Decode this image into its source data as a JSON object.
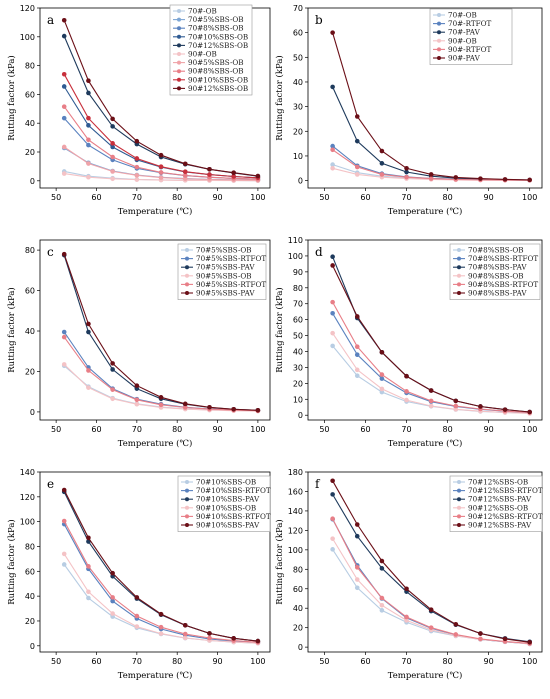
{
  "chart_data": [
    {
      "type": "line",
      "panel_label": "a",
      "xlabel": "Temperature (℃)",
      "ylabel": "Rutting factor (kPa)",
      "xlim": [
        46,
        103
      ],
      "ylim": [
        -5,
        120
      ],
      "xticks": [
        50,
        60,
        70,
        80,
        90,
        100
      ],
      "yticks": [
        0,
        20,
        40,
        60,
        80,
        100,
        120
      ],
      "legend_position": "top-right",
      "x": [
        52,
        58,
        64,
        70,
        76,
        82,
        88,
        94,
        100
      ],
      "series": [
        {
          "name": "70#-OB",
          "color": "#b8cde3",
          "values": [
            6.5,
            3.2,
            1.8,
            1.0,
            0.6,
            0.4,
            0.3,
            0.2,
            0.1
          ]
        },
        {
          "name": "70#5%SBS-OB",
          "color": "#7da6d4",
          "values": [
            22.8,
            12.5,
            6.8,
            4.0,
            2.4,
            1.5,
            1.0,
            0.7,
            0.5
          ]
        },
        {
          "name": "70#8%SBS-OB",
          "color": "#5a82bf",
          "values": [
            43.5,
            24.8,
            14.5,
            8.6,
            5.6,
            3.6,
            2.4,
            1.7,
            1.2
          ]
        },
        {
          "name": "70#10%SBS-OB",
          "color": "#2e5a92",
          "values": [
            65.5,
            38.5,
            23.5,
            14.5,
            9.5,
            6.2,
            4.3,
            3.0,
            2.1
          ]
        },
        {
          "name": "70#12%SBS-OB",
          "color": "#1e3a5c",
          "values": [
            100.5,
            61.0,
            37.8,
            25.5,
            16.5,
            11.5,
            8.0,
            5.5,
            3.2
          ]
        },
        {
          "name": "90#-OB",
          "color": "#f4c3c6",
          "values": [
            5.0,
            2.5,
            1.4,
            0.8,
            0.5,
            0.3,
            0.2,
            0.15,
            0.1
          ]
        },
        {
          "name": "90#5%SBS-OB",
          "color": "#f0a3a8",
          "values": [
            23.5,
            12.0,
            6.5,
            3.8,
            2.2,
            1.4,
            0.9,
            0.6,
            0.4
          ]
        },
        {
          "name": "90#8%SBS-OB",
          "color": "#e87e87",
          "values": [
            51.5,
            28.5,
            16.5,
            9.5,
            5.8,
            3.7,
            2.5,
            1.7,
            1.1
          ]
        },
        {
          "name": "90#10%SBS-OB",
          "color": "#c8303c",
          "values": [
            74.0,
            43.5,
            26.0,
            15.5,
            9.8,
            6.3,
            4.3,
            3.0,
            2.1
          ]
        },
        {
          "name": "90#12%SBS-OB",
          "color": "#6b0f17",
          "values": [
            111.5,
            69.5,
            43.0,
            27.5,
            17.8,
            11.8,
            8.0,
            5.6,
            3.3
          ]
        }
      ]
    },
    {
      "type": "line",
      "panel_label": "b",
      "xlabel": "Temperature (℃)",
      "ylabel": "Rutting factor (kPa)",
      "xlim": [
        46,
        103
      ],
      "ylim": [
        -3,
        70
      ],
      "xticks": [
        50,
        60,
        70,
        80,
        90,
        100
      ],
      "yticks": [
        0,
        10,
        20,
        30,
        40,
        50,
        60,
        70
      ],
      "legend_position": "top-right",
      "x": [
        52,
        58,
        64,
        70,
        76,
        82,
        88,
        94,
        100
      ],
      "series": [
        {
          "name": "70#-OB",
          "color": "#b8cde3",
          "values": [
            6.5,
            3.2,
            1.8,
            1.0,
            0.6,
            0.4,
            0.3,
            0.2,
            0.1
          ]
        },
        {
          "name": "70#-RTFOT",
          "color": "#5a82bf",
          "values": [
            14.0,
            6.0,
            2.8,
            1.5,
            0.9,
            0.6,
            0.4,
            0.3,
            0.2
          ]
        },
        {
          "name": "70#-PAV",
          "color": "#1e3a5c",
          "values": [
            38.0,
            16.0,
            7.0,
            3.5,
            1.8,
            1.0,
            0.6,
            0.4,
            0.2
          ]
        },
        {
          "name": "90#-OB",
          "color": "#f4c3c6",
          "values": [
            5.0,
            2.5,
            1.4,
            0.8,
            0.5,
            0.3,
            0.2,
            0.15,
            0.1
          ]
        },
        {
          "name": "90#-RTFOT",
          "color": "#e87e87",
          "values": [
            12.5,
            5.5,
            2.5,
            1.4,
            0.8,
            0.5,
            0.3,
            0.2,
            0.15
          ]
        },
        {
          "name": "90#-PAV",
          "color": "#6b0f17",
          "values": [
            60.0,
            26.0,
            12.0,
            5.0,
            2.5,
            1.3,
            0.8,
            0.5,
            0.3
          ]
        }
      ]
    },
    {
      "type": "line",
      "panel_label": "c",
      "xlabel": "Temperature (℃)",
      "ylabel": "Rutting factor (kPa)",
      "xlim": [
        46,
        103
      ],
      "ylim": [
        -4,
        85
      ],
      "xticks": [
        50,
        60,
        70,
        80,
        90,
        100
      ],
      "yticks": [
        0,
        20,
        40,
        60,
        80
      ],
      "legend_position": "top-right",
      "x": [
        52,
        58,
        64,
        70,
        76,
        82,
        88,
        94,
        100
      ],
      "series": [
        {
          "name": "70#5%SBS-OB",
          "color": "#b8cde3",
          "values": [
            22.8,
            12.5,
            6.8,
            4.0,
            2.4,
            1.5,
            1.0,
            0.7,
            0.5
          ]
        },
        {
          "name": "70#5%SBS-RTFOT",
          "color": "#5a82bf",
          "values": [
            39.5,
            22.0,
            11.5,
            6.3,
            3.8,
            2.3,
            1.5,
            1.0,
            0.6
          ]
        },
        {
          "name": "70#5%SBS-PAV",
          "color": "#1e3a5c",
          "values": [
            77.5,
            39.5,
            21.0,
            11.5,
            6.5,
            3.8,
            2.2,
            1.3,
            0.8
          ]
        },
        {
          "name": "90#5%SBS-OB",
          "color": "#f4c3c6",
          "values": [
            23.5,
            12.0,
            6.5,
            3.8,
            2.2,
            1.4,
            0.9,
            0.6,
            0.4
          ]
        },
        {
          "name": "90#5%SBS-RTFOT",
          "color": "#e87e87",
          "values": [
            37.0,
            20.5,
            11.0,
            6.0,
            3.5,
            2.2,
            1.4,
            0.9,
            0.6
          ]
        },
        {
          "name": "90#5%SBS-PAV",
          "color": "#6b0f17",
          "values": [
            78.0,
            43.5,
            24.0,
            13.0,
            7.2,
            4.0,
            2.3,
            1.3,
            0.8
          ]
        }
      ]
    },
    {
      "type": "line",
      "panel_label": "d",
      "xlabel": "Temperature (℃)",
      "ylabel": "Rutting factor (kPa)",
      "xlim": [
        46,
        103
      ],
      "ylim": [
        -3,
        110
      ],
      "xticks": [
        50,
        60,
        70,
        80,
        90,
        100
      ],
      "yticks": [
        0,
        10,
        20,
        30,
        40,
        50,
        60,
        70,
        80,
        90,
        100,
        110
      ],
      "legend_position": "top-right",
      "x": [
        52,
        58,
        64,
        70,
        76,
        82,
        88,
        94,
        100
      ],
      "series": [
        {
          "name": "70#8%SBS-OB",
          "color": "#b8cde3",
          "values": [
            43.5,
            24.8,
            14.5,
            8.6,
            5.6,
            3.6,
            2.4,
            1.7,
            1.2
          ]
        },
        {
          "name": "70#8%SBS-RTFOT",
          "color": "#5a82bf",
          "values": [
            64.0,
            38.0,
            23.0,
            14.0,
            8.5,
            5.5,
            3.7,
            2.5,
            1.6
          ]
        },
        {
          "name": "70#8%SBS-PAV",
          "color": "#1e3a5c",
          "values": [
            99.5,
            61.0,
            39.5,
            24.5,
            15.5,
            9.0,
            5.5,
            3.5,
            2.0
          ]
        },
        {
          "name": "90#8%SBS-OB",
          "color": "#f4c3c6",
          "values": [
            51.5,
            28.5,
            16.5,
            9.5,
            5.8,
            3.7,
            2.5,
            1.7,
            1.1
          ]
        },
        {
          "name": "90#8%SBS-RTFOT",
          "color": "#e87e87",
          "values": [
            71.0,
            43.0,
            25.5,
            15.0,
            9.0,
            5.8,
            3.9,
            2.6,
            1.7
          ]
        },
        {
          "name": "90#8%SBS-PAV",
          "color": "#6b0f17",
          "values": [
            94.0,
            62.0,
            39.5,
            24.5,
            15.5,
            9.0,
            5.5,
            3.5,
            2.0
          ]
        }
      ]
    },
    {
      "type": "line",
      "panel_label": "e",
      "xlabel": "Temperature (℃)",
      "ylabel": "Rutting factor (kPa)",
      "xlim": [
        46,
        103
      ],
      "ylim": [
        -5,
        140
      ],
      "xticks": [
        50,
        60,
        70,
        80,
        90,
        100
      ],
      "yticks": [
        0,
        20,
        40,
        60,
        80,
        100,
        120,
        140
      ],
      "legend_position": "top-right",
      "x": [
        52,
        58,
        64,
        70,
        76,
        82,
        88,
        94,
        100
      ],
      "series": [
        {
          "name": "70#10%SBS-OB",
          "color": "#b8cde3",
          "values": [
            65.5,
            38.5,
            23.5,
            14.5,
            9.5,
            6.2,
            4.3,
            3.0,
            2.1
          ]
        },
        {
          "name": "70#10%SBS-RTFOT",
          "color": "#5a82bf",
          "values": [
            98.0,
            62.0,
            36.0,
            22.0,
            13.5,
            8.5,
            5.5,
            3.8,
            2.6
          ]
        },
        {
          "name": "70#10%SBS-PAV",
          "color": "#1e3a5c",
          "values": [
            124.0,
            84.0,
            56.0,
            38.0,
            25.0,
            16.5,
            10.0,
            6.0,
            3.8
          ]
        },
        {
          "name": "90#10%SBS-OB",
          "color": "#f4c3c6",
          "values": [
            74.0,
            43.5,
            26.0,
            15.5,
            9.8,
            6.3,
            4.3,
            3.0,
            2.1
          ]
        },
        {
          "name": "90#10%SBS-RTFOT",
          "color": "#e87e87",
          "values": [
            100.5,
            64.0,
            39.0,
            24.0,
            15.0,
            9.5,
            6.3,
            4.2,
            2.8
          ]
        },
        {
          "name": "90#10%SBS-PAV",
          "color": "#6b0f17",
          "values": [
            125.5,
            87.0,
            58.5,
            39.0,
            25.5,
            16.5,
            10.0,
            6.0,
            3.8
          ]
        }
      ]
    },
    {
      "type": "line",
      "panel_label": "f",
      "xlabel": "Temperature (℃)",
      "ylabel": "Rutting factor (kPa)",
      "xlim": [
        46,
        103
      ],
      "ylim": [
        -5,
        180
      ],
      "xticks": [
        50,
        60,
        70,
        80,
        90,
        100
      ],
      "yticks": [
        0,
        20,
        40,
        60,
        80,
        100,
        120,
        140,
        160,
        180
      ],
      "legend_position": "top-right",
      "x": [
        52,
        58,
        64,
        70,
        76,
        82,
        88,
        94,
        100
      ],
      "series": [
        {
          "name": "70#12%SBS-OB",
          "color": "#b8cde3",
          "values": [
            100.5,
            61.0,
            37.8,
            25.5,
            16.5,
            11.5,
            8.0,
            5.5,
            3.2
          ]
        },
        {
          "name": "70#12%SBS-RTFOT",
          "color": "#5a82bf",
          "values": [
            131.5,
            84.0,
            50.0,
            30.0,
            19.5,
            12.5,
            8.0,
            5.5,
            3.5
          ]
        },
        {
          "name": "70#12%SBS-PAV",
          "color": "#1e3a5c",
          "values": [
            157.0,
            114.0,
            81.0,
            57.0,
            37.0,
            23.0,
            14.0,
            9.0,
            5.5
          ]
        },
        {
          "name": "90#12%SBS-OB",
          "color": "#f4c3c6",
          "values": [
            111.5,
            69.5,
            43.0,
            27.5,
            17.8,
            11.8,
            8.0,
            5.6,
            3.3
          ]
        },
        {
          "name": "90#12%SBS-RTFOT",
          "color": "#e87e87",
          "values": [
            132.0,
            82.0,
            50.5,
            31.0,
            20.0,
            13.0,
            8.5,
            5.8,
            3.8
          ]
        },
        {
          "name": "90#12%SBS-PAV",
          "color": "#6b0f17",
          "values": [
            171.0,
            126.0,
            88.5,
            60.0,
            38.5,
            23.5,
            14.0,
            8.5,
            5.0
          ]
        }
      ]
    }
  ]
}
